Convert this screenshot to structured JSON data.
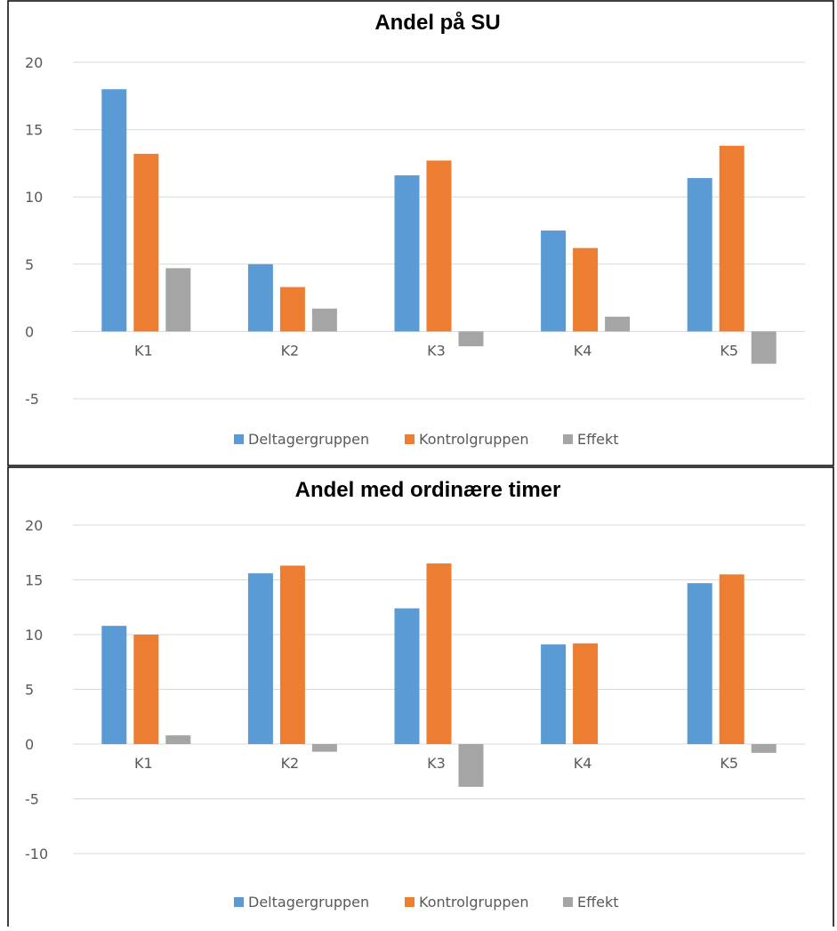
{
  "colors": {
    "deltager": "#5b9bd5",
    "kontrol": "#ed7d31",
    "effekt": "#a5a5a5",
    "grid": "#d9d9d9",
    "axis_text": "#595959",
    "frame": "#000000"
  },
  "chart_data": [
    {
      "type": "bar",
      "title": "Andel på SU",
      "categories": [
        "K1",
        "K2",
        "K3",
        "K4",
        "K5"
      ],
      "series": [
        {
          "name": "Deltagergruppen",
          "values": [
            18.0,
            5.0,
            11.6,
            7.5,
            11.4
          ]
        },
        {
          "name": "Kontrolgruppen",
          "values": [
            13.2,
            3.3,
            12.7,
            6.2,
            13.8
          ]
        },
        {
          "name": "Effekt",
          "values": [
            4.7,
            1.7,
            -1.1,
            1.1,
            -2.4
          ]
        }
      ],
      "ylim": [
        -5,
        20
      ],
      "yticks": [
        20,
        15,
        10,
        5,
        0,
        -5
      ],
      "grid": true,
      "legend": "bottom"
    },
    {
      "type": "bar",
      "title": "Andel med ordinære timer",
      "categories": [
        "K1",
        "K2",
        "K3",
        "K4",
        "K5"
      ],
      "series": [
        {
          "name": "Deltagergruppen",
          "values": [
            10.8,
            15.6,
            12.4,
            9.1,
            14.7
          ]
        },
        {
          "name": "Kontrolgruppen",
          "values": [
            10.0,
            16.3,
            16.5,
            9.2,
            15.5
          ]
        },
        {
          "name": "Effekt",
          "values": [
            0.8,
            -0.7,
            -3.9,
            0.0,
            -0.8
          ]
        }
      ],
      "ylim": [
        -10,
        20
      ],
      "yticks": [
        20,
        15,
        10,
        5,
        0,
        -5,
        -10
      ],
      "grid": true,
      "legend": "bottom"
    }
  ]
}
